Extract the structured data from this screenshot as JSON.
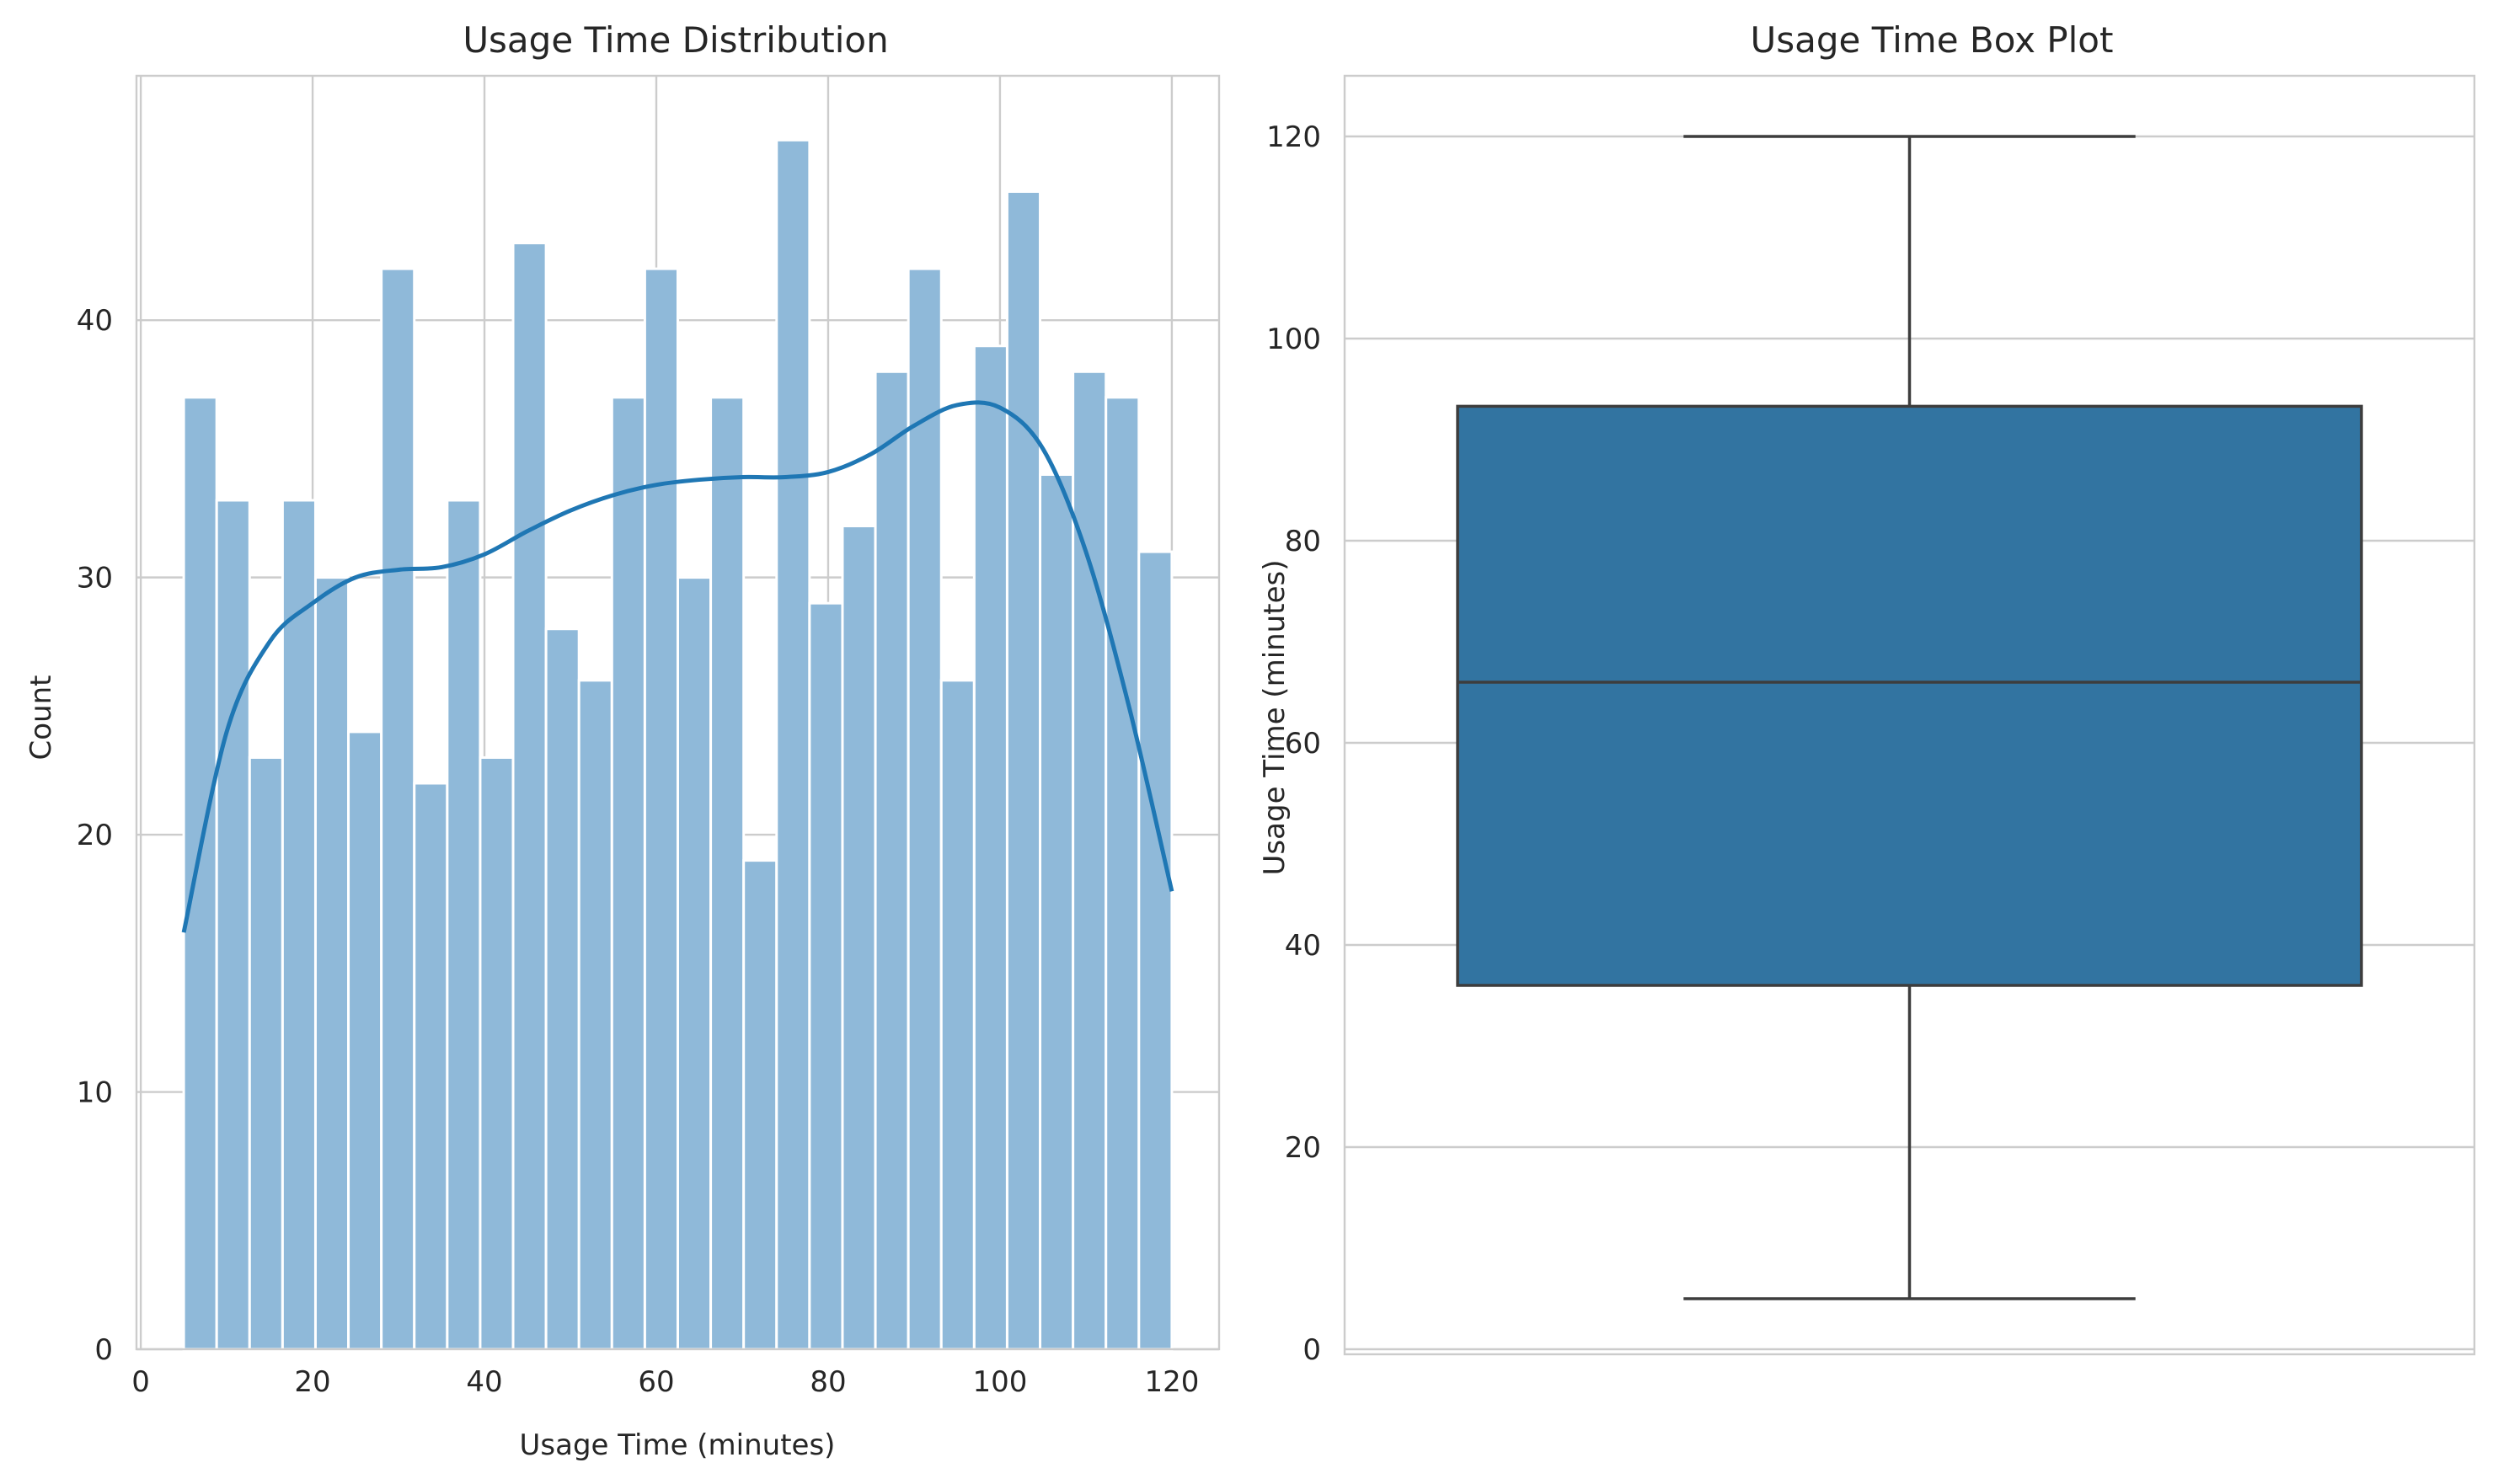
{
  "chart_data": [
    {
      "type": "histogram",
      "title": "Usage Time Distribution",
      "xlabel": "Usage Time (minutes)",
      "ylabel": "Count",
      "xlim": [
        -0.5,
        125.5
      ],
      "ylim": [
        0,
        49.5
      ],
      "xticks": [
        0,
        20,
        40,
        60,
        80,
        100,
        120
      ],
      "yticks": [
        0,
        10,
        20,
        30,
        40
      ],
      "grid": true,
      "bin_edges": [
        5,
        8.833,
        12.667,
        16.5,
        20.333,
        24.167,
        28,
        31.833,
        35.667,
        39.5,
        43.333,
        47.167,
        51,
        54.833,
        58.667,
        62.5,
        66.333,
        70.167,
        74,
        77.833,
        81.667,
        85.5,
        89.333,
        93.167,
        97,
        100.833,
        104.667,
        108.5,
        112.333,
        116.167,
        120
      ],
      "counts": [
        37,
        33,
        23,
        33,
        30,
        24,
        42,
        22,
        33,
        23,
        43,
        28,
        26,
        37,
        42,
        30,
        37,
        19,
        47,
        29,
        32,
        38,
        42,
        26,
        39,
        45,
        34,
        38,
        37,
        31
      ],
      "bar_color": "#8fb9d9",
      "kde": {
        "color": "#1f77b4",
        "x": [
          5,
          10,
          15,
          20,
          25,
          30,
          35,
          40,
          45,
          50,
          55,
          60,
          65,
          70,
          75,
          80,
          85,
          90,
          95,
          100,
          105,
          110,
          115,
          120
        ],
        "y": [
          16.2,
          24,
          27.5,
          29,
          30,
          30.3,
          30.4,
          30.9,
          31.8,
          32.6,
          33.2,
          33.6,
          33.8,
          33.9,
          33.9,
          34.1,
          34.8,
          35.9,
          36.7,
          36.6,
          35,
          31,
          25,
          17.8
        ]
      }
    },
    {
      "type": "box",
      "title": "Usage Time Box Plot",
      "xlabel": "",
      "ylabel": "Usage Time (minutes)",
      "ylim": [
        -0.5,
        126
      ],
      "yticks": [
        0,
        20,
        40,
        60,
        80,
        100,
        120
      ],
      "grid": true,
      "stats": {
        "min": 5,
        "q1": 36,
        "median": 66,
        "q3": 93.3,
        "max": 120
      },
      "box_color": "#3274a1"
    }
  ]
}
